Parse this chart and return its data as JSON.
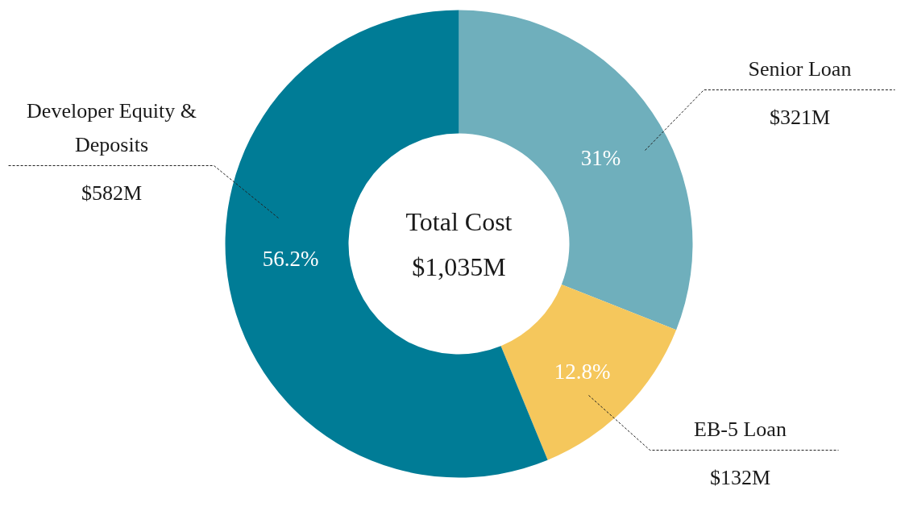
{
  "chart_data": {
    "type": "donut",
    "categories": [
      "Senior Loan",
      "EB-5 Loan",
      "Developer Equity & Deposits"
    ],
    "values": [
      31,
      12.8,
      56.2
    ],
    "colors": [
      "#6fafbc",
      "#f5c75c",
      "#007c96"
    ],
    "value_labels": [
      "31%",
      "12.8%",
      "56.2%"
    ],
    "annotations": [
      "Total Cost",
      "$1,035M",
      "$321M",
      "$132M",
      "$582M"
    ]
  }
}
